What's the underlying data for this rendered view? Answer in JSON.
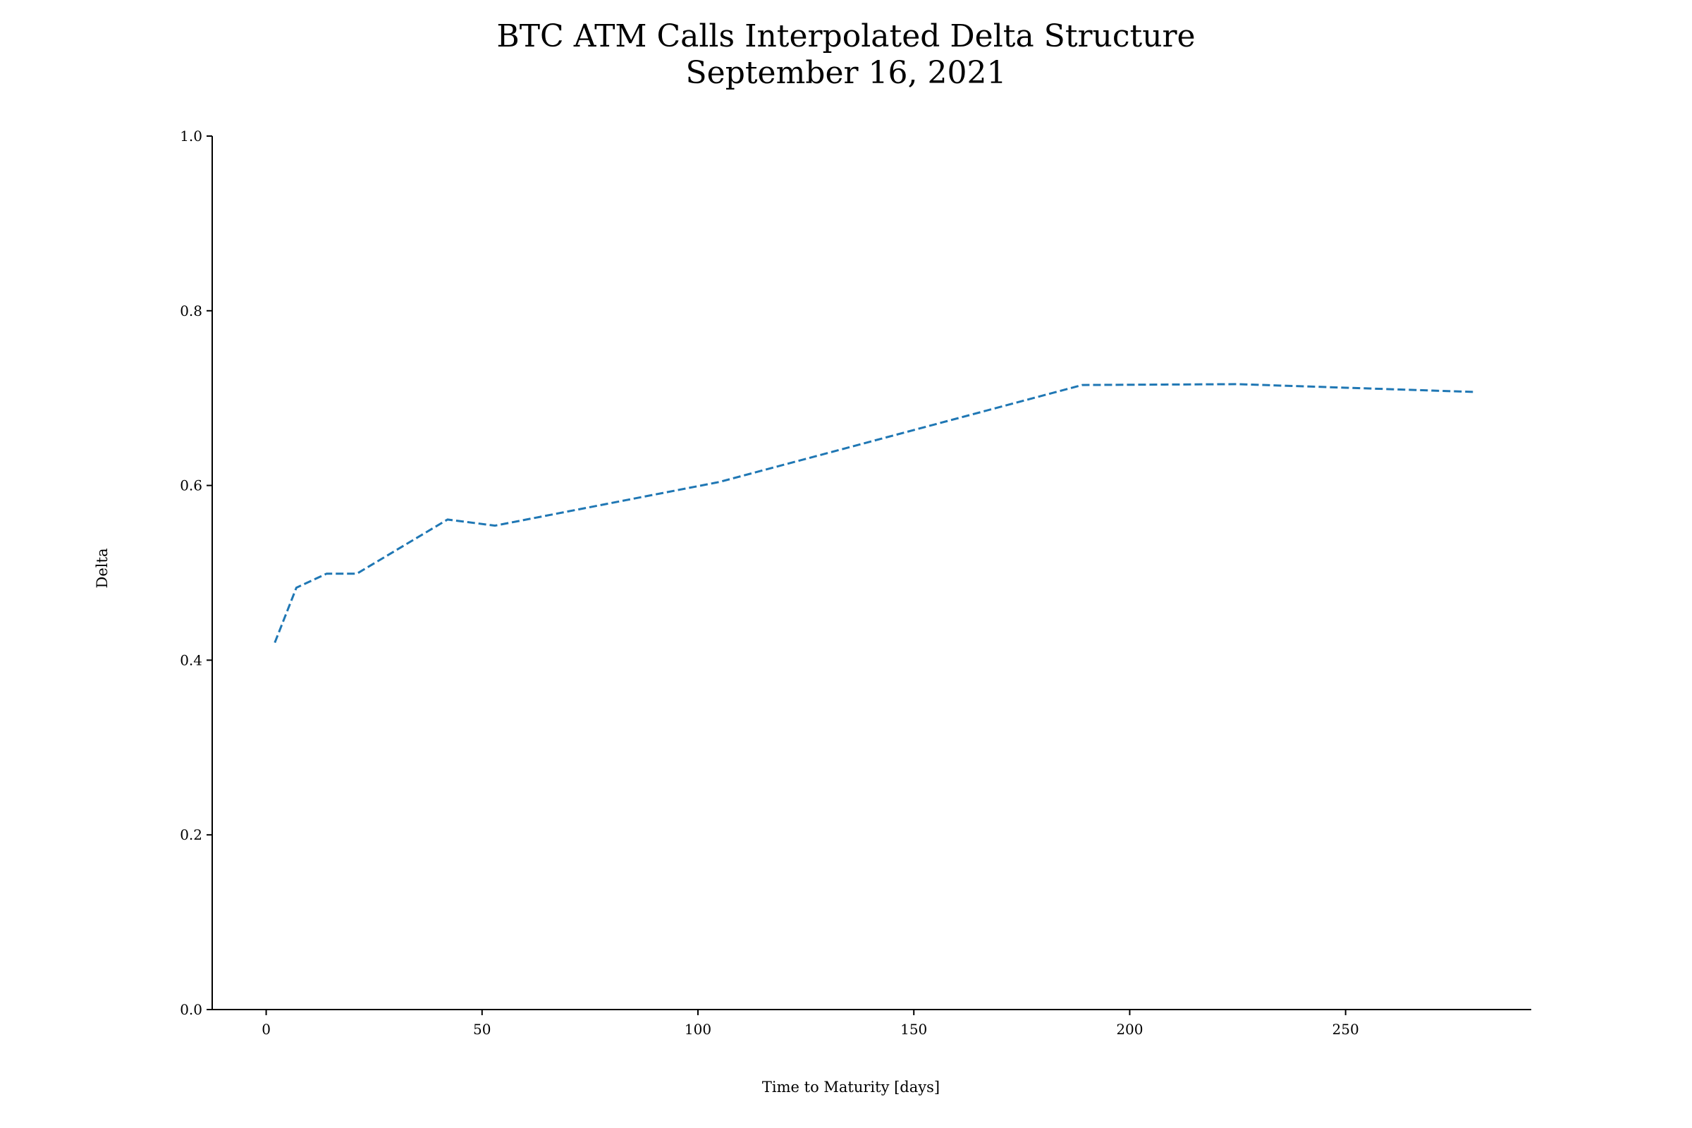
{
  "chart_data": {
    "type": "line",
    "title": "BTC ATM Calls Interpolated Delta Structure",
    "subtitle": "September 16, 2021",
    "xlabel": "Time to Maturity [days]",
    "ylabel": "Delta",
    "xlim": [
      -12.5,
      293
    ],
    "ylim": [
      0.0,
      1.0
    ],
    "xticks": [
      0,
      50,
      100,
      150,
      200,
      250
    ],
    "yticks": [
      0.0,
      0.2,
      0.4,
      0.6,
      0.8,
      1.0
    ],
    "ytick_labels": [
      "0.0",
      "0.2",
      "0.4",
      "0.6",
      "0.8",
      "1.0"
    ],
    "grid": false,
    "series": [
      {
        "color": "#1f77b4",
        "line_style": "dashed",
        "x": [
          2,
          7,
          14,
          21,
          42,
          53,
          105,
          189,
          225,
          280
        ],
        "y": [
          0.42,
          0.483,
          0.499,
          0.499,
          0.561,
          0.554,
          0.604,
          0.715,
          0.716,
          0.707
        ]
      }
    ]
  }
}
